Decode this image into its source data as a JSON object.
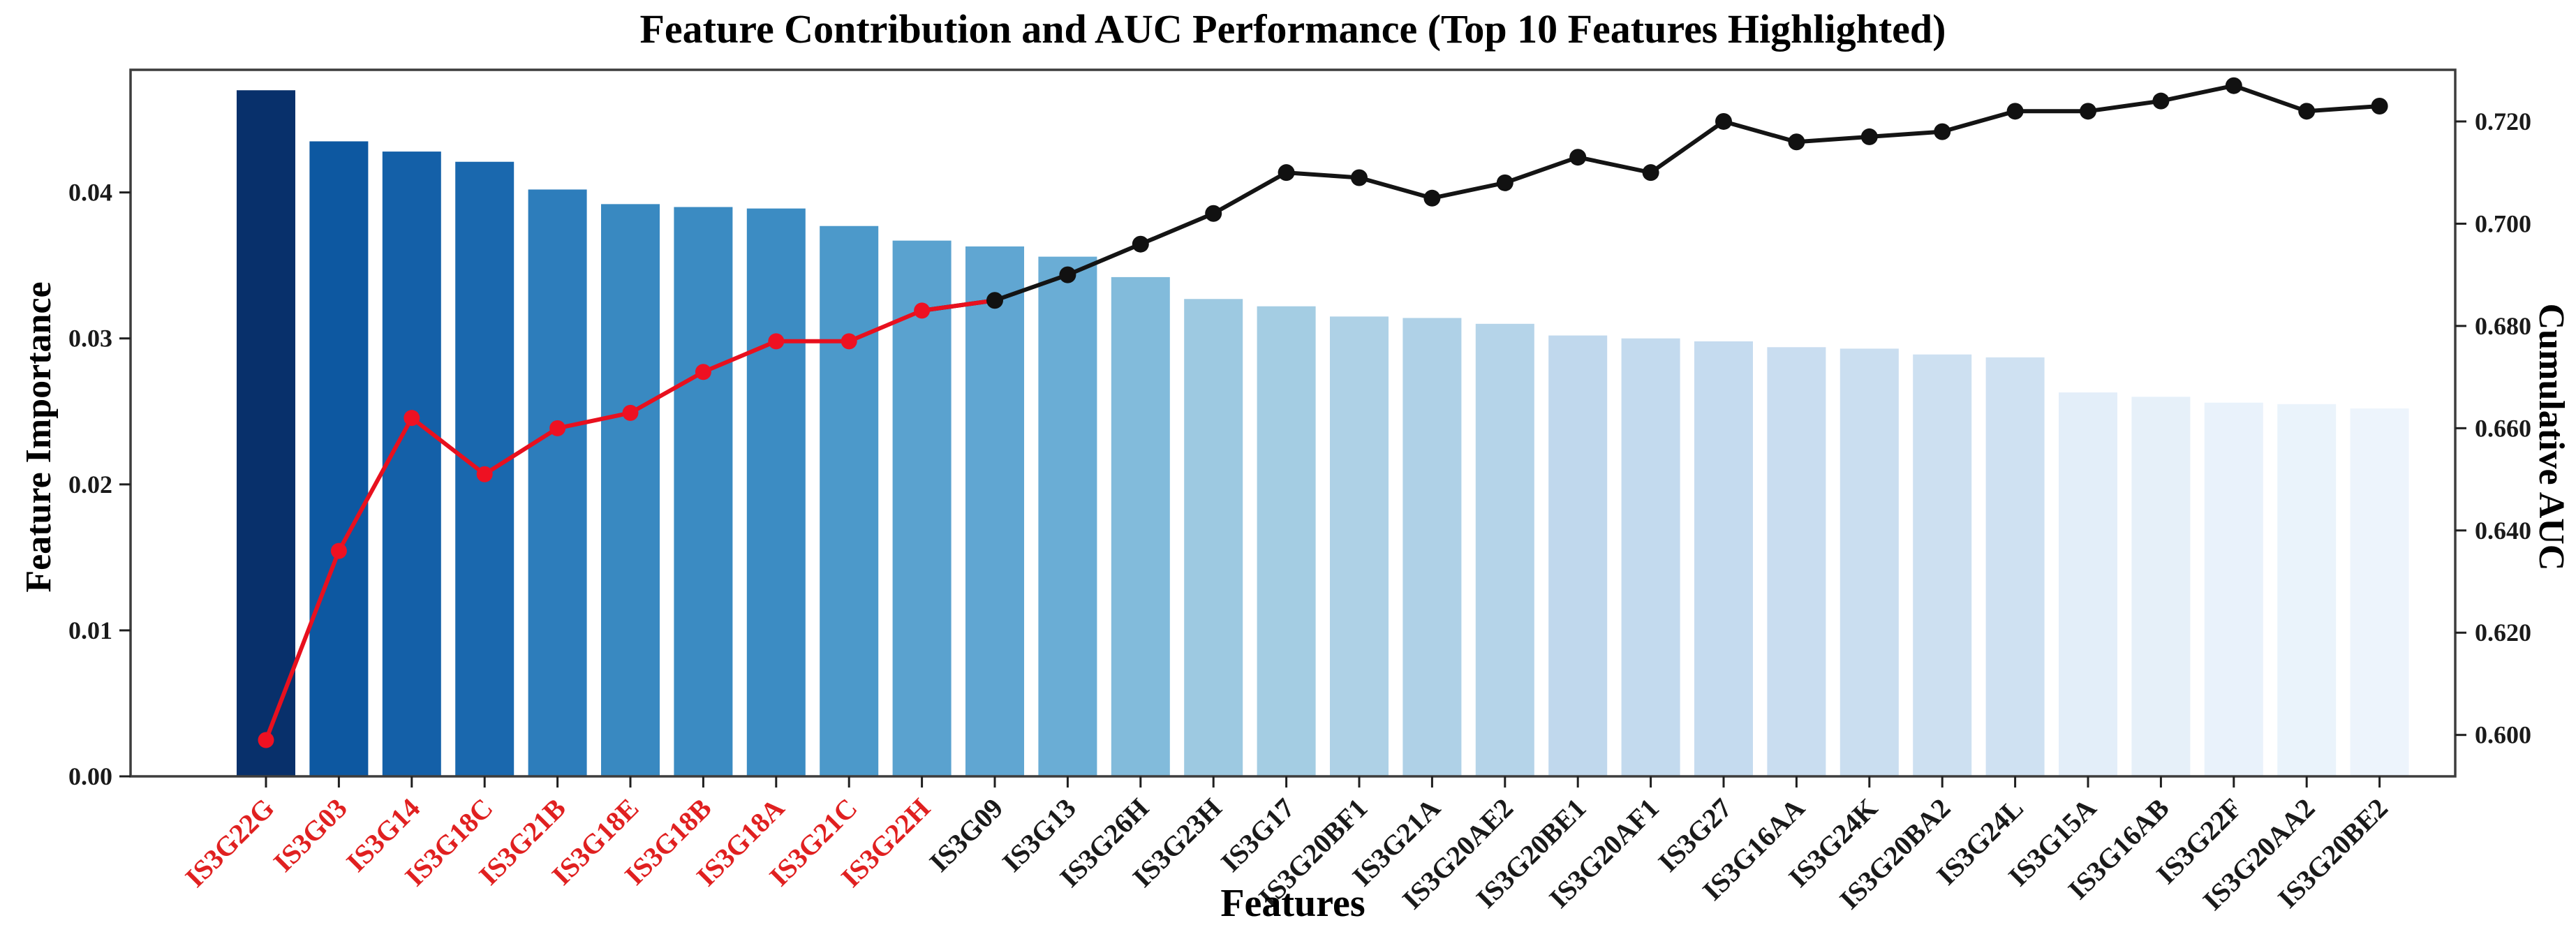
{
  "title": "Feature Contribution and AUC Performance (Top 10 Features Highlighted)",
  "chart_data": {
    "type": "bar",
    "title": "Feature Contribution and AUC Performance (Top 10 Features Highlighted)",
    "xlabel": "Features",
    "ylabel_left": "Feature Importance",
    "ylabel_right": "Cumulative AUC",
    "grid": false,
    "legend": "none",
    "categories": [
      "IS3G22G",
      "IS3G03",
      "IS3G14",
      "IS3G18C",
      "IS3G21B",
      "IS3G18E",
      "IS3G18B",
      "IS3G18A",
      "IS3G21C",
      "IS3G22H",
      "IS3G09",
      "IS3G13",
      "IS3G26H",
      "IS3G23H",
      "IS3G17",
      "IS3G20BF1",
      "IS3G21A",
      "IS3G20AE2",
      "IS3G20BE1",
      "IS3G20AF1",
      "IS3G27",
      "IS3G16AA",
      "IS3G24K",
      "IS3G20BA2",
      "IS3G24L",
      "IS3G15A",
      "IS3G16AB",
      "IS3G22F",
      "IS3G20AA2",
      "IS3G20BE2"
    ],
    "series": [
      {
        "name": "Feature Importance",
        "type": "bar",
        "axis": "left",
        "values": [
          0.047,
          0.0435,
          0.0428,
          0.0421,
          0.0402,
          0.0392,
          0.039,
          0.0389,
          0.0377,
          0.0367,
          0.0363,
          0.0356,
          0.0342,
          0.0327,
          0.0322,
          0.0315,
          0.0314,
          0.031,
          0.0302,
          0.03,
          0.0298,
          0.0294,
          0.0293,
          0.0289,
          0.0287,
          0.0263,
          0.026,
          0.0256,
          0.0255,
          0.0252
        ]
      },
      {
        "name": "Cumulative AUC",
        "type": "line",
        "axis": "right",
        "values": [
          0.599,
          0.636,
          0.662,
          0.651,
          0.66,
          0.663,
          0.671,
          0.677,
          0.677,
          0.683,
          0.685,
          0.69,
          0.696,
          0.702,
          0.71,
          0.709,
          0.705,
          0.708,
          0.713,
          0.71,
          0.72,
          0.716,
          0.717,
          0.718,
          0.722,
          0.722,
          0.724,
          0.727,
          0.722,
          0.723
        ]
      }
    ],
    "top10_highlight_count": 10,
    "highlighted_features": [
      "IS3G22G",
      "IS3G03",
      "IS3G14",
      "IS3G18C",
      "IS3G21B",
      "IS3G18E",
      "IS3G18B",
      "IS3G18A",
      "IS3G21C",
      "IS3G22H"
    ],
    "y_left": {
      "lim": [
        0,
        0.0484
      ],
      "tick_values": [
        0.0,
        0.01,
        0.02,
        0.03,
        0.04
      ],
      "tick_labels": [
        "0.00",
        "0.01",
        "0.02",
        "0.03",
        "0.04"
      ]
    },
    "y_right": {
      "lim": [
        0.5919,
        0.7301
      ],
      "tick_values": [
        0.6,
        0.62,
        0.64,
        0.66,
        0.68,
        0.7,
        0.72
      ],
      "tick_labels": [
        "0.600",
        "0.620",
        "0.640",
        "0.660",
        "0.680",
        "0.700",
        "0.720"
      ]
    },
    "colors": {
      "bar_colormap_stops": [
        "#f7fbff",
        "#deebf7",
        "#c6dbef",
        "#9ecae1",
        "#6baed6",
        "#4292c6",
        "#2171b5",
        "#08519c",
        "#08306b"
      ],
      "bar_colormap_domain": [
        0.024,
        0.047
      ],
      "highlight_line": "#e8101e",
      "highlight_marker": "#ee1122",
      "rest_line": "#141414",
      "rest_marker": "#111111",
      "highlight_tick_label": "#e02020",
      "tick_label": "#1a1a1a",
      "spine": "#3d3d3d",
      "tick_mark": "#1f1f1f",
      "background": "#ffffff"
    }
  }
}
